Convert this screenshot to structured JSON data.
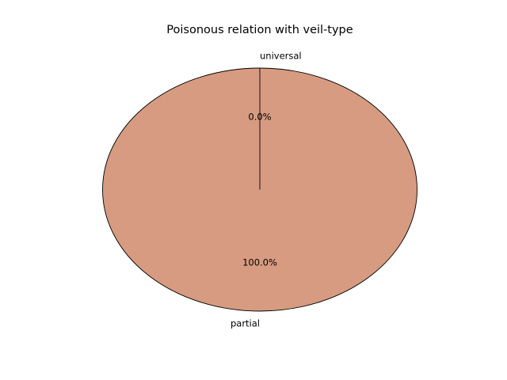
{
  "chart_data": {
    "type": "pie",
    "title": "Poisonous relation with veil-type",
    "slices": [
      {
        "label": "partial",
        "value": 100.0,
        "pct_label": "100.0%",
        "color": "#d79b81"
      },
      {
        "label": "universal",
        "value": 0.0,
        "pct_label": "0.0%",
        "color": "#d79b81"
      }
    ],
    "edge_color": "#000000",
    "start_angle_deg": 90,
    "legend": "none"
  }
}
